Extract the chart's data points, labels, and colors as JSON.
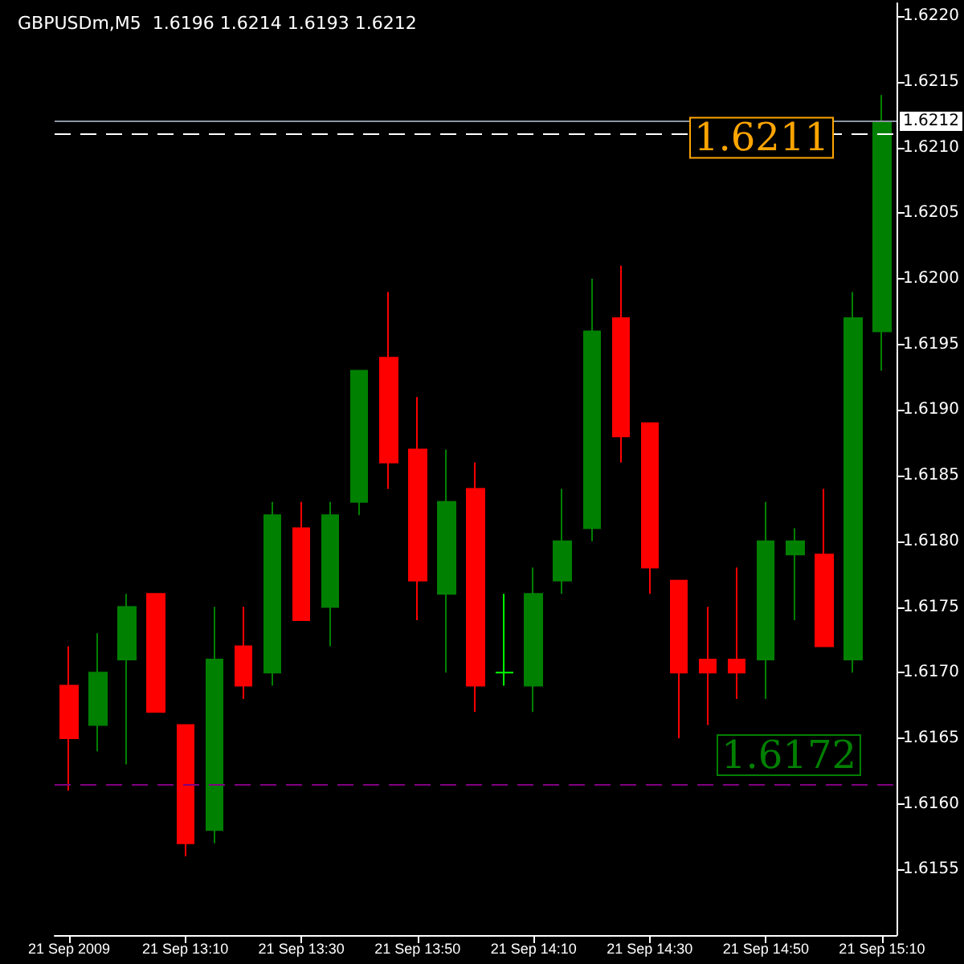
{
  "chart_data": {
    "type": "candlestick",
    "title": "GBPUSDm,M5  1.6196 1.6214 1.6193 1.6212",
    "categories": [
      "21 Sep 2009",
      null,
      null,
      null,
      "21 Sep 13:10",
      null,
      null,
      null,
      "21 Sep 13:30",
      null,
      null,
      null,
      "21 Sep 13:50",
      null,
      null,
      null,
      "21 Sep 14:10",
      null,
      null,
      null,
      "21 Sep 14:30",
      null,
      null,
      null,
      "21 Sep 14:50",
      null,
      null,
      null,
      "21 Sep 15:10"
    ],
    "ohlc": [
      [
        1.6169,
        1.6172,
        1.6161,
        1.6165
      ],
      [
        1.6166,
        1.6173,
        1.6164,
        1.617
      ],
      [
        1.6171,
        1.6176,
        1.6163,
        1.6175
      ],
      [
        1.6176,
        1.6176,
        1.6167,
        1.6167
      ],
      [
        1.6166,
        1.6166,
        1.6156,
        1.6157
      ],
      [
        1.6158,
        1.6175,
        1.6157,
        1.6171
      ],
      [
        1.6172,
        1.6175,
        1.6168,
        1.6169
      ],
      [
        1.617,
        1.6183,
        1.6169,
        1.6182
      ],
      [
        1.6181,
        1.6183,
        1.6174,
        1.6174
      ],
      [
        1.6175,
        1.6183,
        1.6172,
        1.6182
      ],
      [
        1.6183,
        1.6193,
        1.6182,
        1.6193
      ],
      [
        1.6194,
        1.6199,
        1.6184,
        1.6186
      ],
      [
        1.6187,
        1.6191,
        1.6174,
        1.6177
      ],
      [
        1.6176,
        1.6187,
        1.617,
        1.6183
      ],
      [
        1.6184,
        1.6186,
        1.6167,
        1.6169
      ],
      [
        1.617,
        1.6176,
        1.6169,
        1.617
      ],
      [
        1.6169,
        1.6178,
        1.6167,
        1.6176
      ],
      [
        1.6177,
        1.6184,
        1.6176,
        1.618
      ],
      [
        1.6181,
        1.62,
        1.618,
        1.6196
      ],
      [
        1.6197,
        1.6201,
        1.6186,
        1.6188
      ],
      [
        1.6189,
        1.6189,
        1.6176,
        1.6178
      ],
      [
        1.6177,
        1.6177,
        1.6165,
        1.617
      ],
      [
        1.6171,
        1.6175,
        1.6166,
        1.617
      ],
      [
        1.6171,
        1.6178,
        1.6168,
        1.617
      ],
      [
        1.6171,
        1.6183,
        1.6168,
        1.618
      ],
      [
        1.6179,
        1.6181,
        1.6174,
        1.618
      ],
      [
        1.6179,
        1.6184,
        1.6172,
        1.6172
      ],
      [
        1.6171,
        1.6199,
        1.617,
        1.6197
      ],
      [
        1.6196,
        1.6214,
        1.6193,
        1.6212
      ]
    ],
    "colors": [
      "#ff0000",
      "#008000",
      "#008000",
      "#ff0000",
      "#ff0000",
      "#008000",
      "#ff0000",
      "#008000",
      "#ff0000",
      "#008000",
      "#008000",
      "#ff0000",
      "#ff0000",
      "#008000",
      "#ff0000",
      "#00ff00",
      "#008000",
      "#008000",
      "#008000",
      "#ff0000",
      "#ff0000",
      "#ff0000",
      "#ff0000",
      "#ff0000",
      "#008000",
      "#008000",
      "#ff0000",
      "#008000",
      "#008000"
    ],
    "ylim": [
      1.615,
      1.6221
    ],
    "yticks": [
      1.6155,
      {
        "value": 1.616,
        "label": "1.6160"
      },
      1.6165,
      {
        "value": 1.617,
        "label": "1.6170"
      },
      1.6175,
      {
        "value": 1.618,
        "label": "1.6180"
      },
      1.6185,
      {
        "value": 1.619,
        "label": "1.6190"
      },
      1.6195,
      {
        "value": 1.62,
        "label": "1.6200"
      },
      1.6205,
      {
        "value": 1.621,
        "label": "1.6210"
      },
      1.6215,
      {
        "value": 1.622,
        "label": "1.6220"
      }
    ],
    "ref_lines": [
      {
        "axis": "y",
        "value": 1.6212,
        "label": "1.6212",
        "color": "#8b95a1",
        "line_style": "solid"
      },
      {
        "axis": "y",
        "value": 1.6211,
        "label": "1.6211",
        "color": "#ffffff",
        "line_style": "dashed"
      },
      {
        "axis": "y",
        "value": 1.61615,
        "color": "#800080",
        "line_style": "dashed"
      }
    ],
    "annotations": [
      "1.6172"
    ],
    "grid": false
  }
}
